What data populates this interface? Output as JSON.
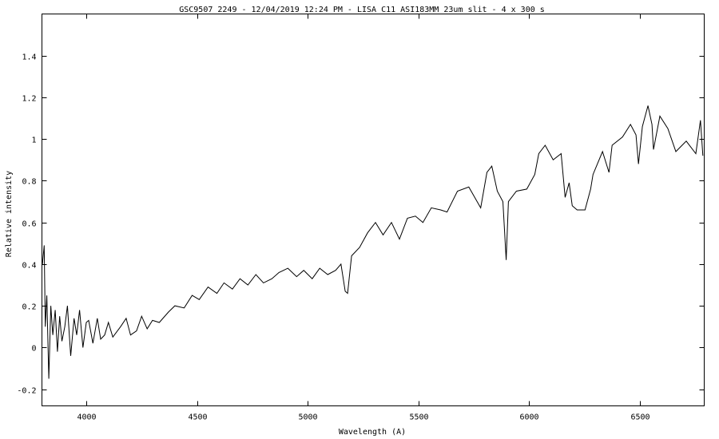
{
  "chart_data": {
    "type": "line",
    "title": "GSC9507 2249 - 12/04/2019 12:24 PM - LISA C11 ASI183MM 23um slit - 4 x 300 s",
    "xlabel": "Wavelength (A)",
    "ylabel": "Relative intensity",
    "xlim": [
      3800,
      6790
    ],
    "ylim": [
      -0.28,
      1.6
    ],
    "xticks": [
      4000,
      4500,
      5000,
      5500,
      6000,
      6500
    ],
    "xtick_labels": [
      "4000",
      "4500",
      "5000",
      "5500",
      "6000",
      "6500"
    ],
    "yticks": [
      -0.2,
      0,
      0.2,
      0.4,
      0.6,
      0.8,
      1,
      1.2,
      1.4
    ],
    "ytick_labels": [
      "-0.2",
      "0",
      "0.2",
      "0.4",
      "0.6",
      "0.8",
      "1",
      "1.2",
      "1.4"
    ],
    "grid": false,
    "line_color": "#000000",
    "series": [
      {
        "x": [
          3802,
          3810,
          3815,
          3822,
          3831,
          3840,
          3849,
          3860,
          3870,
          3880,
          3890,
          3903,
          3915,
          3930,
          3945,
          3957,
          3970,
          3985,
          4000,
          4011,
          4030,
          4050,
          4065,
          4083,
          4100,
          4120,
          4155,
          4180,
          4200,
          4227,
          4250,
          4275,
          4299,
          4330,
          4371,
          4400,
          4442,
          4478,
          4510,
          4550,
          4590,
          4622,
          4660,
          4694,
          4730,
          4766,
          4800,
          4838,
          4870,
          4910,
          4950,
          4982,
          5020,
          5054,
          5090,
          5126,
          5150,
          5169,
          5180,
          5198,
          5234,
          5270,
          5306,
          5340,
          5378,
          5414,
          5450,
          5486,
          5520,
          5558,
          5600,
          5629,
          5676,
          5727,
          5781,
          5809,
          5831,
          5856,
          5881,
          5896,
          5906,
          5942,
          5989,
          6025,
          6043,
          6072,
          6108,
          6144,
          6162,
          6180,
          6194,
          6216,
          6252,
          6277,
          6288,
          6331,
          6360,
          6374,
          6421,
          6457,
          6482,
          6493,
          6511,
          6536,
          6554,
          6561,
          6590,
          6626,
          6662,
          6709,
          6752,
          6773,
          6784
        ],
        "y": [
          0.4,
          0.49,
          0.1,
          0.25,
          -0.15,
          0.2,
          0.06,
          0.18,
          -0.02,
          0.15,
          0.03,
          0.1,
          0.2,
          -0.04,
          0.14,
          0.06,
          0.18,
          0.0,
          0.12,
          0.13,
          0.02,
          0.14,
          0.04,
          0.06,
          0.12,
          0.05,
          0.1,
          0.14,
          0.06,
          0.08,
          0.15,
          0.09,
          0.13,
          0.12,
          0.17,
          0.2,
          0.19,
          0.25,
          0.23,
          0.29,
          0.26,
          0.31,
          0.28,
          0.33,
          0.3,
          0.35,
          0.31,
          0.33,
          0.36,
          0.38,
          0.34,
          0.37,
          0.33,
          0.38,
          0.35,
          0.37,
          0.4,
          0.27,
          0.26,
          0.44,
          0.48,
          0.55,
          0.6,
          0.54,
          0.6,
          0.52,
          0.62,
          0.63,
          0.6,
          0.67,
          0.66,
          0.65,
          0.75,
          0.77,
          0.67,
          0.84,
          0.87,
          0.75,
          0.7,
          0.42,
          0.7,
          0.75,
          0.76,
          0.83,
          0.93,
          0.97,
          0.9,
          0.93,
          0.72,
          0.79,
          0.68,
          0.66,
          0.66,
          0.76,
          0.83,
          0.94,
          0.84,
          0.97,
          1.01,
          1.07,
          1.02,
          0.88,
          1.06,
          1.16,
          1.07,
          0.95,
          1.11,
          1.05,
          0.94,
          0.99,
          0.93,
          1.09,
          0.92
        ]
      }
    ]
  }
}
